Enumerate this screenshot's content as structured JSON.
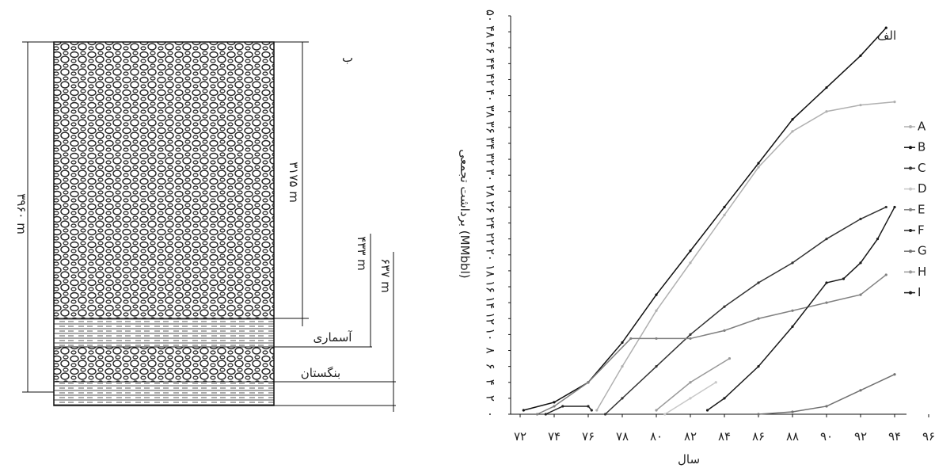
{
  "diagram": {
    "label": "ب",
    "total_depth": "۳۹۶۰ m",
    "top_depth": "۳۱۷۵ m",
    "asmari_thickness": "۴۳۳ m",
    "bangestan_thickness": "۶۳۷ m",
    "asmari": "آسماری",
    "bangestan": "بنگستان"
  },
  "chart_data": {
    "type": "line",
    "annotation": "الف",
    "y_label": "برداشت تجمعی (MMbbl)",
    "x_label": "سال",
    "xlim": [
      72,
      96
    ],
    "ylim": [
      0,
      50
    ],
    "xticks": [
      {
        "value": 72,
        "label": "۷۲"
      },
      {
        "value": 74,
        "label": "۷۴"
      },
      {
        "value": 76,
        "label": "۷۶"
      },
      {
        "value": 78,
        "label": "۷۸"
      },
      {
        "value": 80,
        "label": "۸۰"
      },
      {
        "value": 82,
        "label": "۸۲"
      },
      {
        "value": 84,
        "label": "۸۴"
      },
      {
        "value": 86,
        "label": "۸۶"
      },
      {
        "value": 88,
        "label": "۸۸"
      },
      {
        "value": 90,
        "label": "۹۰"
      },
      {
        "value": 92,
        "label": "۹۲"
      },
      {
        "value": 94,
        "label": "۹۴"
      },
      {
        "value": 96,
        "label": "۹۶"
      }
    ],
    "yticks": [
      {
        "value": 0,
        "label": "۰"
      },
      {
        "value": 2,
        "label": "۲"
      },
      {
        "value": 4,
        "label": "۴"
      },
      {
        "value": 6,
        "label": "۶"
      },
      {
        "value": 8,
        "label": "۸"
      },
      {
        "value": 10,
        "label": "۱۰"
      },
      {
        "value": 12,
        "label": "۱۲"
      },
      {
        "value": 14,
        "label": "۱۴"
      },
      {
        "value": 16,
        "label": "۱۶"
      },
      {
        "value": 18,
        "label": "۱۸"
      },
      {
        "value": 20,
        "label": "۲۰"
      },
      {
        "value": 22,
        "label": "۲۲"
      },
      {
        "value": 24,
        "label": "۲۴"
      },
      {
        "value": 26,
        "label": "۲۶"
      },
      {
        "value": 28,
        "label": "۲۸"
      },
      {
        "value": 30,
        "label": "۳۰"
      },
      {
        "value": 32,
        "label": "۳۲"
      },
      {
        "value": 34,
        "label": "۳۴"
      },
      {
        "value": 36,
        "label": "۳۶"
      },
      {
        "value": 38,
        "label": "۳۸"
      },
      {
        "value": 40,
        "label": "۴۰"
      },
      {
        "value": 42,
        "label": "۴۲"
      },
      {
        "value": 44,
        "label": "۴۴"
      },
      {
        "value": 46,
        "label": "۴۶"
      },
      {
        "value": 48,
        "label": "۴۸"
      },
      {
        "value": 50,
        "label": "۵۰"
      }
    ],
    "series": [
      {
        "name": "A",
        "color": "#b0b0b0",
        "x": [
          76.5,
          78,
          80,
          82,
          84,
          86,
          88,
          90,
          92,
          94
        ],
        "values": [
          0.5,
          6,
          13,
          19,
          25,
          31,
          35.5,
          38,
          38.8,
          39.2
        ]
      },
      {
        "name": "B",
        "color": "#111111",
        "x": [
          72.2,
          74,
          76,
          78,
          80,
          82,
          84,
          86,
          88,
          90,
          92,
          93.5
        ],
        "values": [
          0.5,
          1.5,
          4,
          9,
          15,
          20.5,
          26,
          31.5,
          37,
          41,
          45,
          48.5
        ]
      },
      {
        "name": "C",
        "color": "#333333",
        "x": [
          77,
          78,
          80,
          82,
          84,
          86,
          88,
          90,
          92,
          93.5
        ],
        "values": [
          0,
          2,
          6,
          10,
          13.5,
          16.5,
          19,
          22,
          24.5,
          26
        ]
      },
      {
        "name": "D",
        "color": "#c8c8c8",
        "x": [
          80.5,
          82,
          83.5
        ],
        "values": [
          0,
          2,
          4
        ]
      },
      {
        "name": "E",
        "color": "#808080",
        "x": [
          73,
          74,
          76,
          78.5,
          80,
          82,
          84,
          86,
          88,
          90,
          92,
          93.5
        ],
        "values": [
          0,
          1,
          4,
          9.5,
          9.5,
          9.5,
          10.5,
          12,
          13,
          14,
          15,
          17.5
        ]
      },
      {
        "name": "F",
        "color": "#222222",
        "x": [
          73.5,
          74.5,
          76,
          76.2
        ],
        "values": [
          0,
          1,
          1,
          0.5
        ]
      },
      {
        "name": "G",
        "color": "#707070",
        "x": [
          86,
          88,
          90,
          92,
          94
        ],
        "values": [
          0,
          0.3,
          1,
          3,
          5
        ]
      },
      {
        "name": "H",
        "color": "#999999",
        "x": [
          80,
          82,
          84.3
        ],
        "values": [
          0.5,
          4,
          7
        ]
      },
      {
        "name": "I",
        "color": "#1a1a1a",
        "x": [
          83,
          84,
          86,
          88,
          90,
          91,
          92,
          93,
          94
        ],
        "values": [
          0.5,
          2,
          6,
          11,
          16.5,
          17,
          19,
          22,
          26
        ]
      }
    ]
  }
}
